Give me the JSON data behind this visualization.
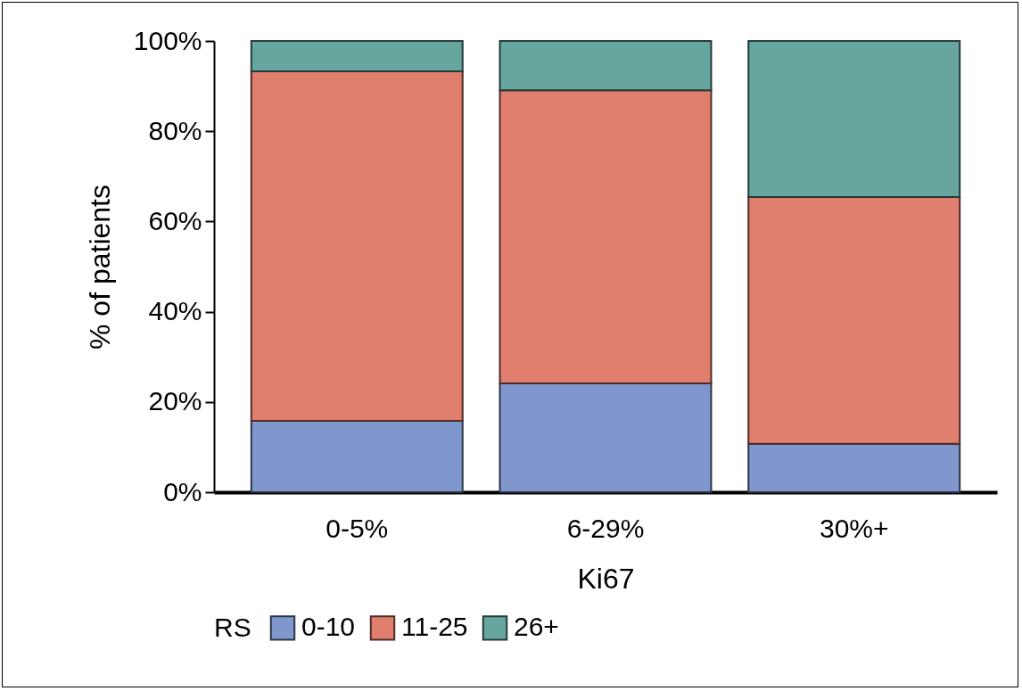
{
  "chart_data": {
    "type": "bar",
    "stacked": true,
    "xlabel": "Ki67",
    "ylabel": "% of patients",
    "legend_title": "RS",
    "legend": "bottom",
    "categories": [
      "0-5%",
      "6-29%",
      "30%+"
    ],
    "series": [
      {
        "name": "0-10",
        "color": "#7f97cc",
        "values": [
          15.8,
          24.1,
          10.7
        ]
      },
      {
        "name": "11-25",
        "color": "#e07f6e",
        "values": [
          77.5,
          65.0,
          54.7
        ]
      },
      {
        "name": "26+",
        "color": "#66a69f",
        "values": [
          6.7,
          10.9,
          34.6
        ]
      }
    ],
    "ylim": [
      0,
      100
    ],
    "yticks": [
      {
        "value": 0,
        "label": "0%"
      },
      {
        "value": 20,
        "label": "20%"
      },
      {
        "value": 40,
        "label": "40%"
      },
      {
        "value": 60,
        "label": "60%"
      },
      {
        "value": 80,
        "label": "80%"
      },
      {
        "value": 100,
        "label": "100%"
      }
    ]
  }
}
